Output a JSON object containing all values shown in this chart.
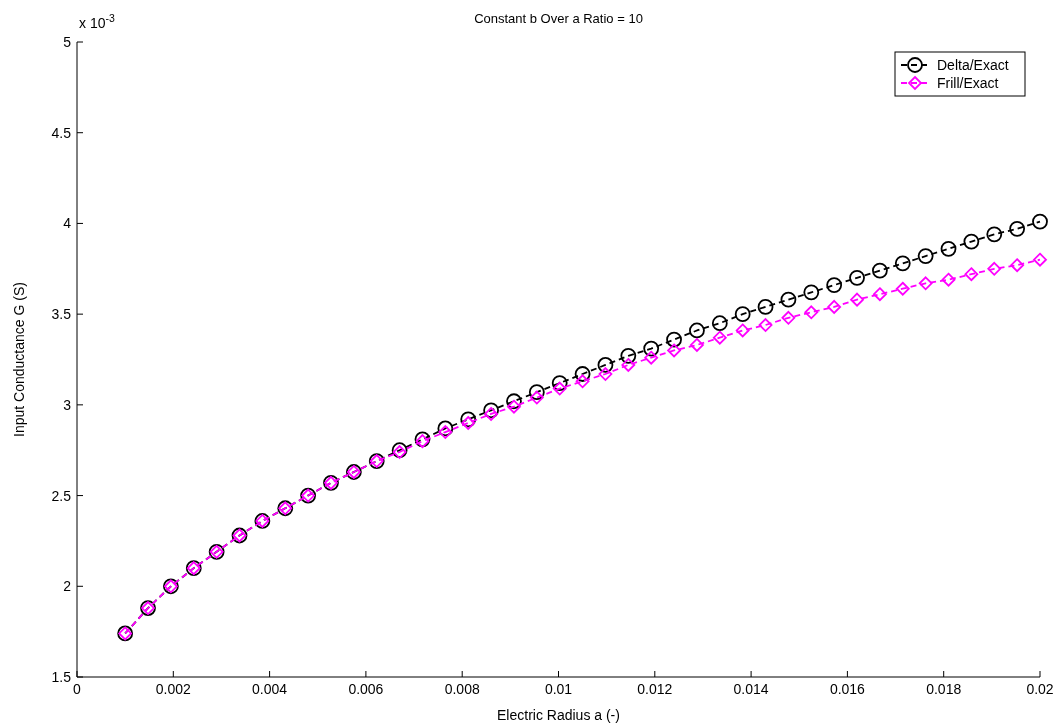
{
  "chart_data": {
    "type": "line",
    "title": "Constant b Over a Ratio = 10",
    "xlabel": "Electric Radius a (-)",
    "ylabel": "Input Conductance G (S)",
    "annotations": [
      "x 10$^{-3}$"
    ],
    "x": [
      0.001,
      0.001475,
      0.00195,
      0.002425,
      0.0029,
      0.003375,
      0.00385,
      0.004325,
      0.0048,
      0.005275,
      0.00575,
      0.006225,
      0.0067,
      0.007175,
      0.00765,
      0.008125,
      0.0086,
      0.009075,
      0.00955,
      0.010025,
      0.0105,
      0.010975,
      0.01145,
      0.011925,
      0.0124,
      0.012875,
      0.01335,
      0.013825,
      0.0143,
      0.014775,
      0.01525,
      0.015725,
      0.0162,
      0.016675,
      0.01715,
      0.017625,
      0.0181,
      0.018575,
      0.01905,
      0.019525,
      0.02
    ],
    "series": [
      {
        "name": "Delta/Exact",
        "color": "#000000",
        "marker": "circle",
        "values": [
          1.74,
          1.88,
          2.0,
          2.1,
          2.19,
          2.28,
          2.36,
          2.43,
          2.5,
          2.57,
          2.63,
          2.69,
          2.75,
          2.81,
          2.87,
          2.92,
          2.97,
          3.02,
          3.07,
          3.12,
          3.17,
          3.22,
          3.27,
          3.31,
          3.36,
          3.41,
          3.45,
          3.5,
          3.54,
          3.58,
          3.62,
          3.66,
          3.7,
          3.74,
          3.78,
          3.82,
          3.86,
          3.9,
          3.94,
          3.97,
          4.01
        ]
      },
      {
        "name": "Frill/Exact",
        "color": "#ff00ff",
        "marker": "diamond",
        "values": [
          1.74,
          1.88,
          2.0,
          2.1,
          2.19,
          2.28,
          2.36,
          2.43,
          2.5,
          2.57,
          2.63,
          2.69,
          2.74,
          2.8,
          2.85,
          2.9,
          2.95,
          2.99,
          3.04,
          3.09,
          3.13,
          3.17,
          3.22,
          3.26,
          3.3,
          3.33,
          3.37,
          3.41,
          3.44,
          3.48,
          3.51,
          3.54,
          3.58,
          3.61,
          3.64,
          3.67,
          3.69,
          3.72,
          3.75,
          3.77,
          3.8
        ]
      }
    ],
    "xlim": [
      0,
      0.02
    ],
    "xticks": [
      0,
      0.002,
      0.004,
      0.006,
      0.008,
      0.01,
      0.012,
      0.014,
      0.016,
      0.018,
      0.02
    ],
    "ylim": [
      1.5,
      5
    ],
    "yticks": [
      1.5,
      2,
      2.5,
      3,
      3.5,
      4,
      4.5,
      5
    ],
    "grid": false,
    "legend": "top right",
    "line_style": "dashed"
  }
}
